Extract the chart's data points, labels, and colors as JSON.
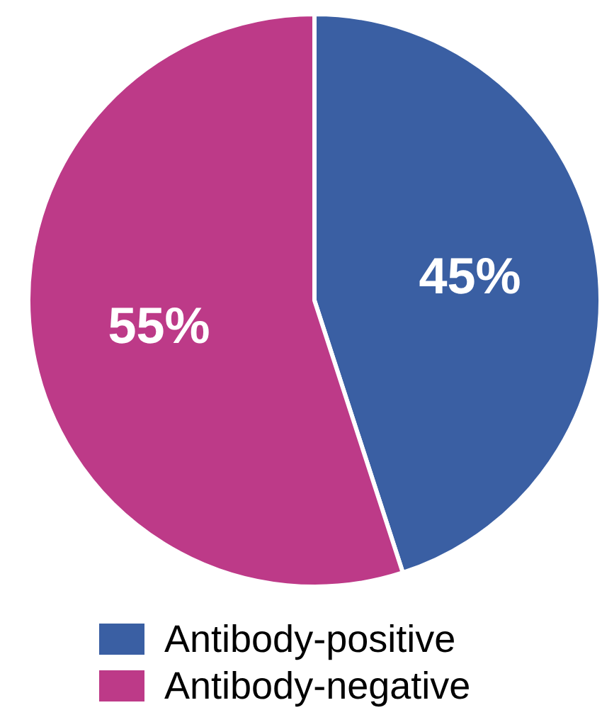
{
  "chart_data": {
    "type": "pie",
    "categories": [
      "Antibody-positive",
      "Antibody-negative"
    ],
    "values": [
      45,
      55
    ],
    "colors": [
      "#3a5fa3",
      "#bd3a88"
    ],
    "value_labels": [
      "45%",
      "55%"
    ],
    "legend": "bottom"
  }
}
